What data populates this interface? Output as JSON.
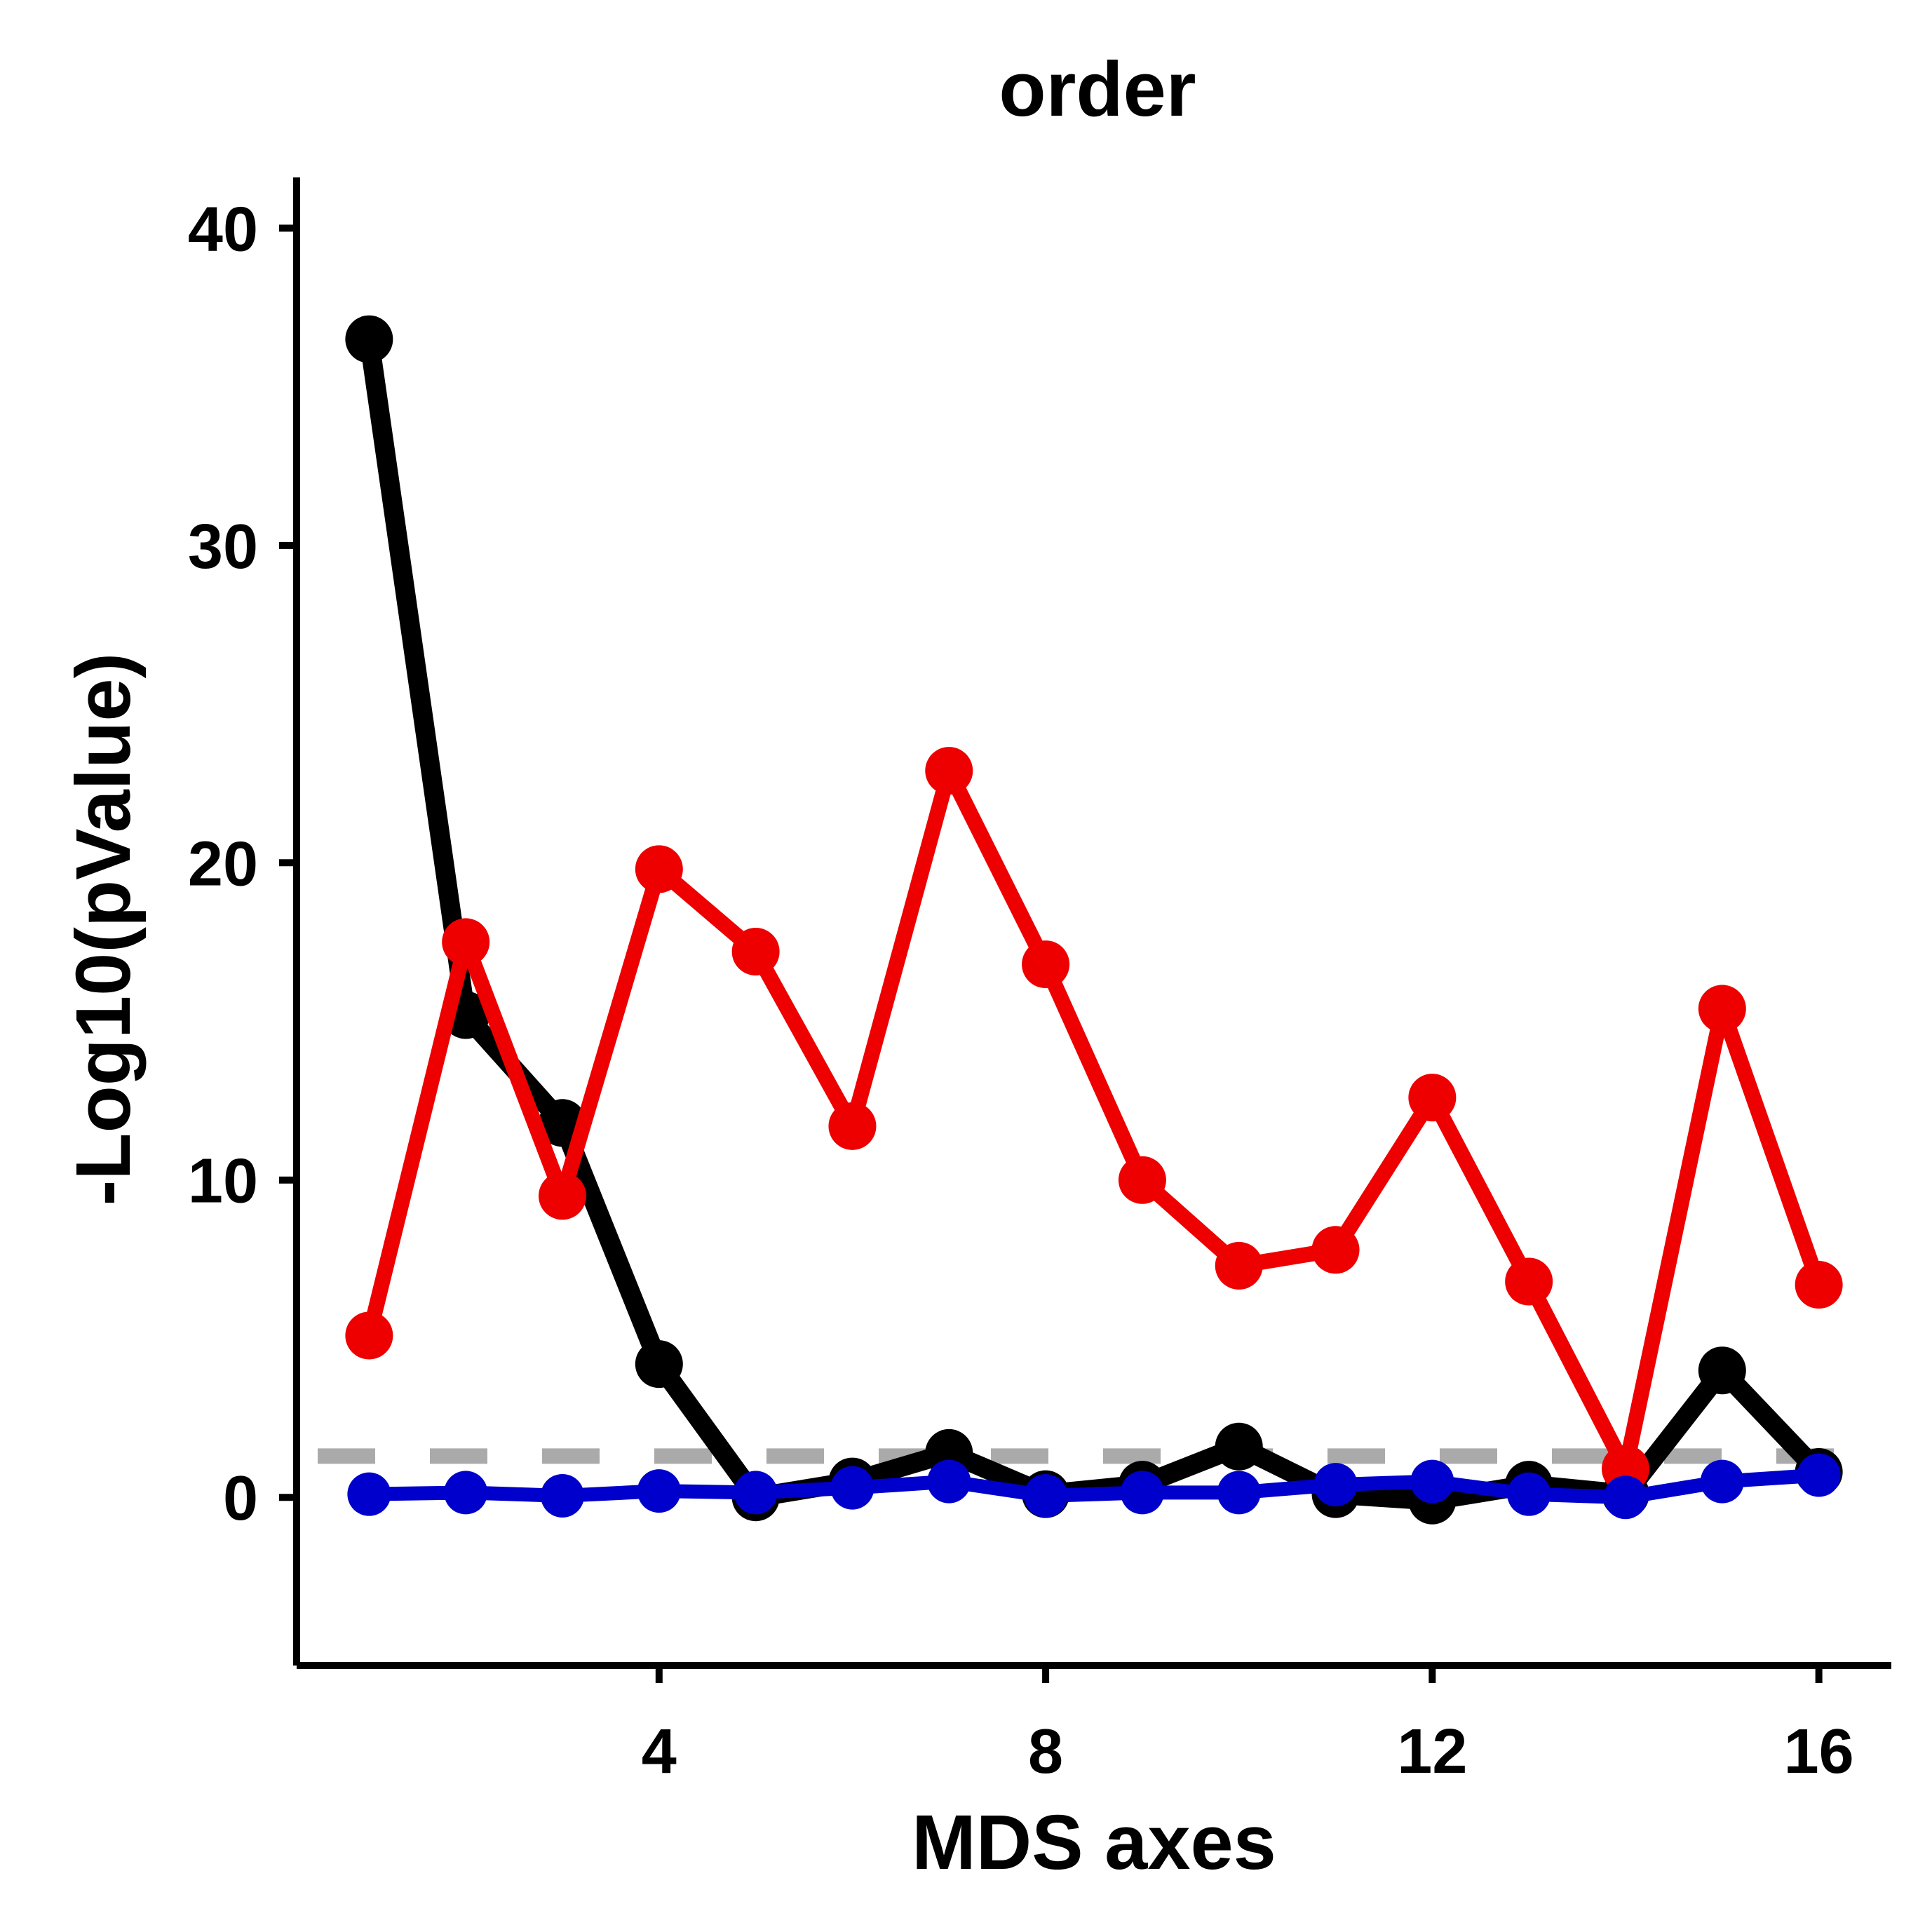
{
  "chart_data": {
    "type": "line",
    "title": "order",
    "xlabel": "MDS axes",
    "ylabel": "-Log10(pValue)",
    "xlim": [
      0.25,
      16.75
    ],
    "ylim": [
      -5.3,
      41.6
    ],
    "x_ticks": [
      4,
      8,
      12,
      16
    ],
    "y_ticks": [
      0,
      10,
      20,
      30,
      40
    ],
    "grid": false,
    "legend": "none",
    "threshold": {
      "value": 1.3,
      "color": "#aaaaaa",
      "style": "dashed"
    },
    "x": [
      1,
      2,
      3,
      4,
      5,
      6,
      7,
      8,
      9,
      10,
      11,
      12,
      13,
      14,
      15,
      16
    ],
    "series": [
      {
        "color": "#000000",
        "values": [
          36.5,
          15.2,
          11.8,
          4.2,
          0.0,
          0.5,
          1.4,
          0.1,
          0.4,
          1.6,
          0.1,
          -0.1,
          0.4,
          0.1,
          4.0,
          0.8
        ]
      },
      {
        "color": "#ee0000",
        "values": [
          5.1,
          17.5,
          9.5,
          19.8,
          17.2,
          11.7,
          22.9,
          16.8,
          10.0,
          7.3,
          7.8,
          12.6,
          6.8,
          0.9,
          15.4,
          6.7
        ]
      },
      {
        "color": "#0000cc",
        "values": [
          0.1,
          0.15,
          0.05,
          0.2,
          0.15,
          0.3,
          0.5,
          0.05,
          0.15,
          0.15,
          0.4,
          0.5,
          0.1,
          0.0,
          0.5,
          0.7
        ]
      }
    ]
  }
}
